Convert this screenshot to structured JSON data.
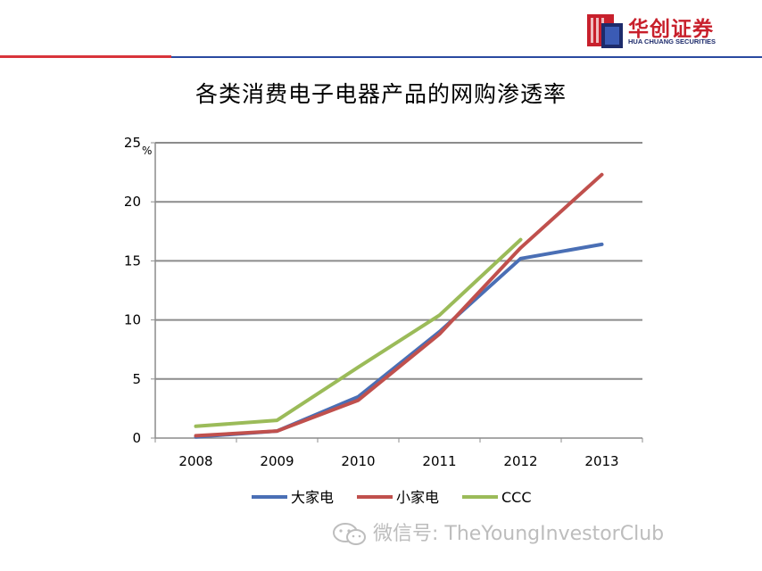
{
  "header": {
    "logo_cn": "华创证券",
    "logo_en": "HUA CHUANG SECURITIES",
    "brand_red": "#c8202c",
    "brand_blue": "#1d2b6b"
  },
  "watermark": {
    "text": "微信号: TheYoungInvestorClub",
    "icon": "wechat-icon"
  },
  "chart_data": {
    "type": "line",
    "title": "各类消费电子电器产品的网购渗透率",
    "ylabel": "%",
    "xlabel": "",
    "x": [
      "2008",
      "2009",
      "2010",
      "2011",
      "2012",
      "2013"
    ],
    "ylim": [
      0,
      25
    ],
    "yticks": [
      0,
      5,
      10,
      15,
      20,
      25
    ],
    "grid": true,
    "legend_position": "bottom",
    "series": [
      {
        "name": "大家电",
        "color": "#4a6fb5",
        "values": [
          0.1,
          0.6,
          3.5,
          9.0,
          15.2,
          16.4
        ]
      },
      {
        "name": "小家电",
        "color": "#c0504d",
        "values": [
          0.2,
          0.6,
          3.2,
          8.8,
          16.1,
          22.3
        ]
      },
      {
        "name": "CCC",
        "color": "#9bbb59",
        "values": [
          1.0,
          1.5,
          6.0,
          10.4,
          16.8,
          null
        ]
      }
    ]
  }
}
